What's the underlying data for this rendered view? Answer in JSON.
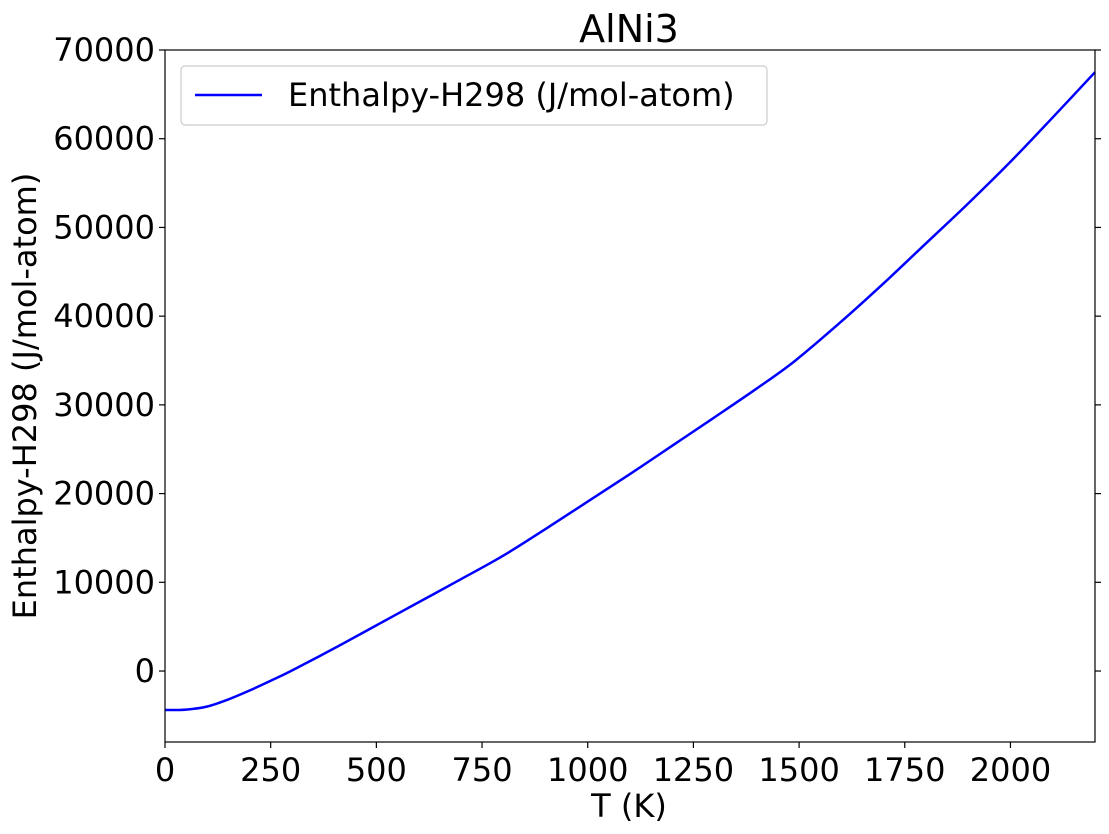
{
  "chart_data": {
    "type": "line",
    "title": "AlNi3",
    "xlabel": "T (K)",
    "ylabel": "Enthalpy-H298 (J/mol-atom)",
    "xlim": [
      0,
      2200
    ],
    "ylim": [
      -8000,
      70000
    ],
    "xticks": [
      0,
      250,
      500,
      750,
      1000,
      1250,
      1500,
      1750,
      2000
    ],
    "yticks": [
      0,
      10000,
      20000,
      30000,
      40000,
      50000,
      60000,
      70000
    ],
    "grid": false,
    "legend_position": "top-left",
    "series": [
      {
        "name": "Enthalpy-H298 (J/mol-atom)",
        "color": "#0000ff",
        "x": [
          0,
          50,
          100,
          150,
          200,
          250,
          298,
          400,
          500,
          600,
          700,
          800,
          900,
          1000,
          1100,
          1200,
          1300,
          1400,
          1490,
          1600,
          1700,
          1800,
          1900,
          2000,
          2100,
          2200
        ],
        "y": [
          -4400,
          -4350,
          -4000,
          -3200,
          -2200,
          -1100,
          0,
          2550,
          5150,
          7750,
          10350,
          13000,
          16000,
          19100,
          22200,
          25400,
          28600,
          31850,
          34950,
          39400,
          43700,
          48200,
          52700,
          57400,
          62400,
          67500
        ]
      }
    ]
  }
}
